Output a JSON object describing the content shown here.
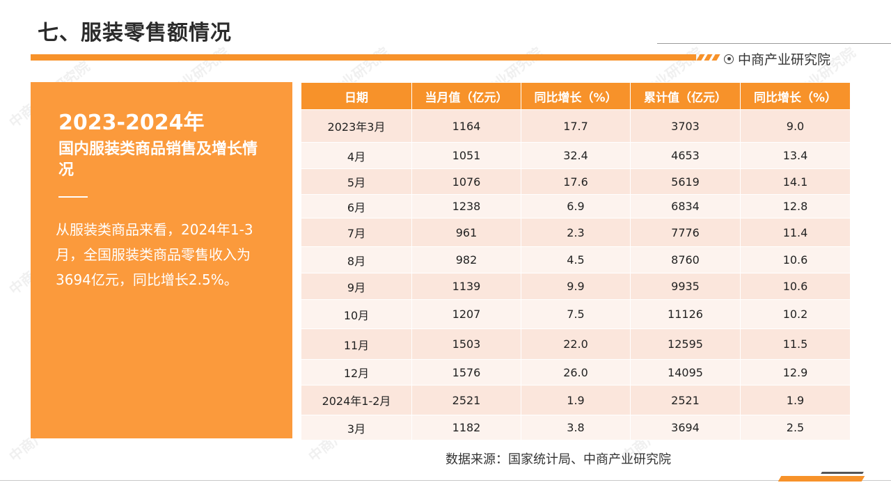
{
  "header": {
    "title": "七、服装零售额情况",
    "brand": "中商产业研究院"
  },
  "left_panel": {
    "title": "2023-2024年",
    "subtitle": "国内服装类商品销售及增长情况",
    "body": "从服装类商品来看，2024年1-3月，全国服装类商品零售收入为3694亿元，同比增长2.5%。"
  },
  "table": {
    "headers": [
      "日期",
      "当月值（亿元）",
      "同比增长（%）",
      "累计值（亿元）",
      "同比增长（%）"
    ],
    "rows": [
      [
        "2023年3月",
        "1164",
        "17.7",
        "3703",
        "9.0"
      ],
      [
        "4月",
        "1051",
        "32.4",
        "4653",
        "13.4"
      ],
      [
        "5月",
        "1076",
        "17.6",
        "5619",
        "14.1"
      ],
      [
        "6月",
        "1238",
        "6.9",
        "6834",
        "12.8"
      ],
      [
        "7月",
        "961",
        "2.3",
        "7776",
        "11.4"
      ],
      [
        "8月",
        "982",
        "4.5",
        "8760",
        "10.6"
      ],
      [
        "9月",
        "1139",
        "9.9",
        "9935",
        "10.6"
      ],
      [
        "10月",
        "1207",
        "7.5",
        "11126",
        "10.2"
      ],
      [
        "11月",
        "1503",
        "22.0",
        "12595",
        "11.5"
      ],
      [
        "12月",
        "1576",
        "26.0",
        "14095",
        "12.9"
      ],
      [
        "2024年1-2月",
        "2521",
        "1.9",
        "2521",
        "1.9"
      ],
      [
        "3月",
        "1182",
        "3.8",
        "3694",
        "2.5"
      ]
    ]
  },
  "source": "数据来源：国家统计局、中商产业研究院",
  "watermark": "中商产业研究院",
  "colors": {
    "accent": "#f7922a",
    "panel": "#fb9a3c",
    "row_dark": "#fbe6dc",
    "row_light": "#fdf3ee"
  }
}
